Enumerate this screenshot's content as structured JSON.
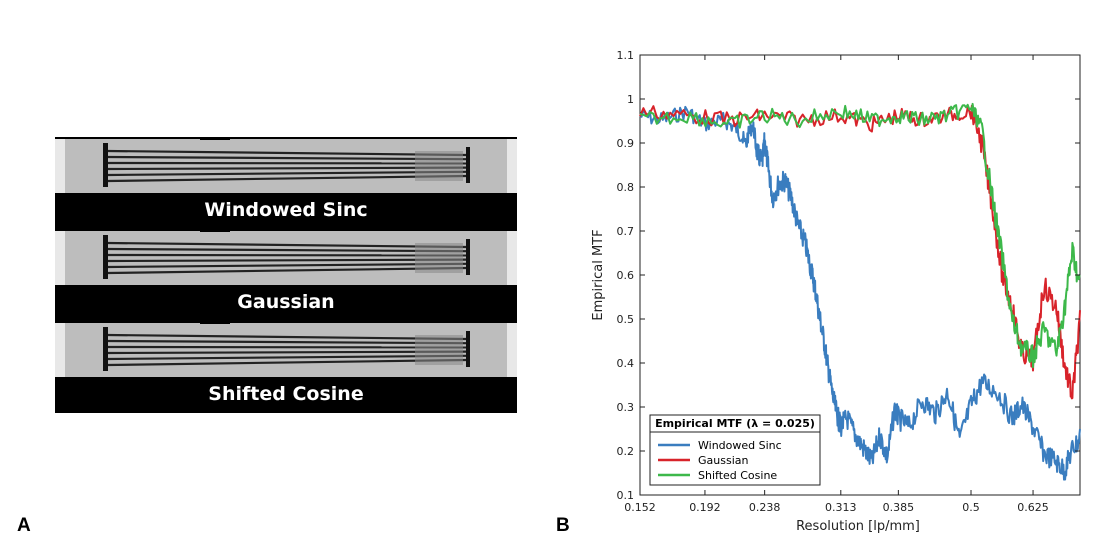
{
  "panel_a": {
    "letter": "A",
    "strips": [
      {
        "label": "Windowed Sinc"
      },
      {
        "label": "Gaussian"
      },
      {
        "label": "Shifted Cosine"
      }
    ]
  },
  "panel_b": {
    "letter": "B"
  },
  "chart_data": {
    "type": "line",
    "title": "",
    "xlabel": "Resolution [lp/mm]",
    "ylabel": "Empirical MTF",
    "xlim": [
      0.152,
      0.74
    ],
    "ylim": [
      0.1,
      1.1
    ],
    "x_ticks": [
      "0.152",
      "0.192",
      "0.238",
      "0.313",
      "0.385",
      "0.5",
      "0.625"
    ],
    "y_ticks": [
      "0.1",
      "0.2",
      "0.3",
      "0.4",
      "0.5",
      "0.6",
      "0.7",
      "0.8",
      "0.9",
      "1",
      "1.1"
    ],
    "legend": {
      "title": "Empirical MTF (λ = 0.025)",
      "location": "bottom-left"
    },
    "series": [
      {
        "name": "Windowed Sinc",
        "color": "#3a7dbf",
        "x": [
          0.152,
          0.165,
          0.18,
          0.192,
          0.205,
          0.215,
          0.222,
          0.228,
          0.232,
          0.236,
          0.238,
          0.241,
          0.245,
          0.25,
          0.256,
          0.262,
          0.268,
          0.275,
          0.28,
          0.285,
          0.29,
          0.295,
          0.3,
          0.305,
          0.31,
          0.313,
          0.32,
          0.33,
          0.34,
          0.35,
          0.36,
          0.37,
          0.38,
          0.385,
          0.4,
          0.42,
          0.44,
          0.46,
          0.48,
          0.5,
          0.52,
          0.55,
          0.58,
          0.6,
          0.625,
          0.65,
          0.68,
          0.7,
          0.72,
          0.74
        ],
        "values": [
          0.98,
          0.97,
          0.99,
          0.96,
          0.97,
          0.95,
          0.92,
          0.96,
          0.9,
          0.88,
          0.93,
          0.87,
          0.8,
          0.83,
          0.84,
          0.8,
          0.74,
          0.7,
          0.65,
          0.6,
          0.53,
          0.47,
          0.4,
          0.34,
          0.3,
          0.28,
          0.3,
          0.26,
          0.23,
          0.2,
          0.26,
          0.21,
          0.32,
          0.3,
          0.28,
          0.34,
          0.31,
          0.36,
          0.25,
          0.33,
          0.38,
          0.36,
          0.3,
          0.33,
          0.28,
          0.22,
          0.2,
          0.18,
          0.23,
          0.25
        ]
      },
      {
        "name": "Gaussian",
        "color": "#d8232a",
        "x": [
          0.152,
          0.18,
          0.21,
          0.238,
          0.27,
          0.313,
          0.35,
          0.385,
          0.42,
          0.46,
          0.5,
          0.52,
          0.54,
          0.56,
          0.58,
          0.6,
          0.625,
          0.65,
          0.68,
          0.7,
          0.72,
          0.74
        ],
        "values": [
          0.99,
          0.98,
          0.97,
          0.98,
          0.97,
          0.98,
          0.96,
          0.98,
          0.97,
          0.98,
          0.99,
          0.92,
          0.78,
          0.62,
          0.55,
          0.45,
          0.43,
          0.6,
          0.55,
          0.42,
          0.35,
          0.52
        ]
      },
      {
        "name": "Shifted Cosine",
        "color": "#3db84a",
        "x": [
          0.152,
          0.18,
          0.21,
          0.238,
          0.27,
          0.313,
          0.35,
          0.385,
          0.42,
          0.46,
          0.5,
          0.52,
          0.54,
          0.56,
          0.58,
          0.6,
          0.625,
          0.65,
          0.68,
          0.7,
          0.72,
          0.74
        ],
        "values": [
          0.97,
          0.98,
          0.96,
          0.98,
          0.97,
          0.99,
          0.97,
          0.98,
          0.97,
          0.98,
          1.0,
          0.95,
          0.8,
          0.66,
          0.52,
          0.46,
          0.44,
          0.5,
          0.45,
          0.55,
          0.68,
          0.6
        ]
      }
    ]
  },
  "colors": {
    "axis": "#222222",
    "phantom_bg": "#000000",
    "phantom_grey": "#bdbdbd"
  }
}
